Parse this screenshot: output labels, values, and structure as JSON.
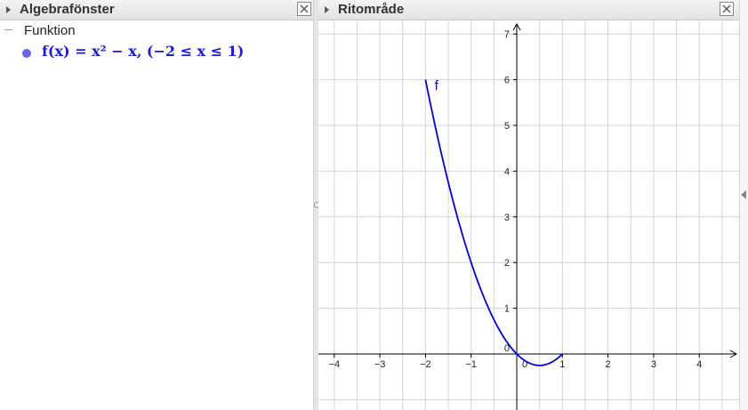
{
  "algebra": {
    "title": "Algebrafönster",
    "group_label": "Funktion",
    "function_text": "f(x) = x² − x,    (−2 ≤ x ≤ 1)"
  },
  "graphics": {
    "title": "Ritområde",
    "curve_label": "f",
    "x_ticks": [
      "-4",
      "-3",
      "-2",
      "-1",
      "0",
      "1",
      "2",
      "3",
      "4"
    ],
    "y_ticks": [
      "1",
      "2",
      "3",
      "4",
      "5",
      "6",
      "7"
    ],
    "y_zero_label": "0"
  },
  "icons": {
    "collapse_triangle": "triangle-right-icon",
    "close": "close-icon",
    "tree_collapse": "minus-icon",
    "visibility_dot": "dot-icon",
    "side_toggle": "triangle-left-icon"
  },
  "colors": {
    "curve": "#0000ee",
    "function_text": "#1a1ae6",
    "dot": "#6666ee",
    "grid": "#d4d4d4",
    "axis": "#000000"
  },
  "chart_data": {
    "type": "line",
    "function": "x^2 - x",
    "domain": [
      -2,
      1
    ],
    "x": [
      -2,
      -1.5,
      -1,
      -0.5,
      0,
      0.5,
      1
    ],
    "y": [
      6,
      3.75,
      2,
      0.75,
      0,
      -0.25,
      0
    ],
    "xlim": [
      -4.4,
      4.8
    ],
    "ylim": [
      -1.1,
      7.4
    ],
    "grid": true
  }
}
